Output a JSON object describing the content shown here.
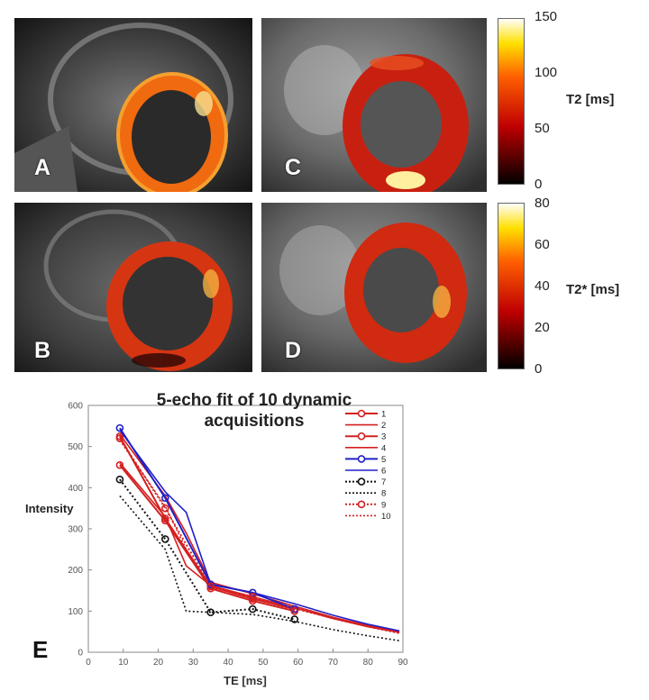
{
  "panels": [
    {
      "label": "A"
    },
    {
      "label": "B"
    },
    {
      "label": "C"
    },
    {
      "label": "D"
    }
  ],
  "colorbars": [
    {
      "title": "T2 [ms]",
      "ticks": [
        "150",
        "100",
        "50",
        "0"
      ],
      "range": [
        0,
        150
      ]
    },
    {
      "title": "T2* [ms]",
      "ticks": [
        "80",
        "60",
        "40",
        "20",
        "0"
      ],
      "range": [
        0,
        80
      ]
    }
  ],
  "figure_label": "E",
  "chart_data": {
    "type": "line",
    "title": "5-echo fit of 10 dynamic acquisitions",
    "xlabel": "TE [ms]",
    "ylabel": "Intensity",
    "xlim": [
      0,
      90
    ],
    "ylim": [
      0,
      600
    ],
    "xticks": [
      "0",
      "10",
      "20",
      "30",
      "40",
      "50",
      "60",
      "70",
      "80",
      "90"
    ],
    "yticks": [
      "0",
      "100",
      "200",
      "300",
      "400",
      "500",
      "600"
    ],
    "grid": false,
    "legend_position": "top-right",
    "series": [
      {
        "name": "1",
        "color": "#d42020",
        "style": "solid-marker",
        "x": [
          9,
          22,
          35,
          47,
          59
        ],
        "y": [
          525,
          325,
          160,
          130,
          105
        ]
      },
      {
        "name": "2",
        "color": "#d42020",
        "style": "solid-fit",
        "x": [
          9,
          22,
          28,
          35,
          47,
          59,
          70,
          80,
          89
        ],
        "y": [
          530,
          380,
          290,
          170,
          142,
          112,
          85,
          65,
          50
        ]
      },
      {
        "name": "3",
        "color": "#d42020",
        "style": "solid-marker",
        "x": [
          9,
          22,
          35,
          47,
          59
        ],
        "y": [
          455,
          320,
          155,
          125,
          100
        ]
      },
      {
        "name": "4",
        "color": "#d42020",
        "style": "solid-fit",
        "x": [
          9,
          22,
          28,
          35,
          47,
          59,
          70,
          80,
          89
        ],
        "y": [
          460,
          330,
          210,
          162,
          135,
          108,
          82,
          62,
          48
        ]
      },
      {
        "name": "5",
        "color": "#2020c8",
        "style": "solid-marker",
        "x": [
          9,
          22,
          35,
          47,
          59
        ],
        "y": [
          545,
          375,
          165,
          145,
          105
        ]
      },
      {
        "name": "6",
        "color": "#2020c8",
        "style": "solid-fit",
        "x": [
          9,
          22,
          28,
          35,
          47,
          59,
          70,
          80,
          89
        ],
        "y": [
          540,
          390,
          340,
          165,
          145,
          118,
          90,
          68,
          52
        ]
      },
      {
        "name": "7",
        "color": "#111111",
        "style": "dotted-marker",
        "x": [
          9,
          22,
          35,
          47,
          59
        ],
        "y": [
          420,
          275,
          97,
          105,
          80
        ]
      },
      {
        "name": "8",
        "color": "#111111",
        "style": "dotted-fit",
        "x": [
          9,
          22,
          28,
          35,
          47,
          59,
          70,
          80,
          89
        ],
        "y": [
          380,
          250,
          100,
          97,
          92,
          75,
          55,
          40,
          28
        ]
      },
      {
        "name": "9",
        "color": "#d42020",
        "style": "dotted-marker",
        "x": [
          9,
          22,
          35,
          47,
          59
        ],
        "y": [
          520,
          350,
          160,
          135,
          100
        ]
      },
      {
        "name": "10",
        "color": "#d42020",
        "style": "dotted-fit",
        "x": [
          9,
          22,
          28,
          35,
          47,
          59,
          70,
          80,
          89
        ],
        "y": [
          515,
          355,
          250,
          158,
          132,
          106,
          82,
          62,
          46
        ]
      }
    ]
  }
}
